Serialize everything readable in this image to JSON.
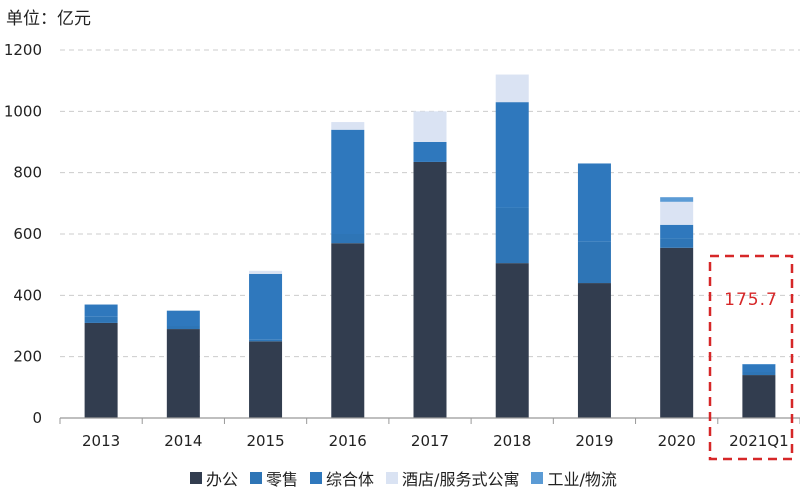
{
  "unit_label": "单位：亿元",
  "annotation": "175.7",
  "colors": {
    "office": "#323d4f",
    "retail": "#2e75b6",
    "complex": "#2f78bd",
    "hotel": "#dae3f3",
    "industrial": "#5b9bd5",
    "grid": "#cccccc",
    "axis": "#999999",
    "annotation": "#d62728"
  },
  "chart_data": {
    "type": "bar",
    "stacked": true,
    "categories": [
      "2013",
      "2014",
      "2015",
      "2016",
      "2017",
      "2018",
      "2019",
      "2020",
      "2021Q1"
    ],
    "series": [
      {
        "name": "办公",
        "color": "#323d4f",
        "values": [
          310,
          290,
          250,
          570,
          835,
          505,
          440,
          555,
          140
        ]
      },
      {
        "name": "零售",
        "color": "#2e75b6",
        "values": [
          20,
          10,
          5,
          30,
          0,
          180,
          135,
          30,
          10
        ]
      },
      {
        "name": "综合体",
        "color": "#2f78bd",
        "values": [
          40,
          50,
          215,
          340,
          65,
          345,
          255,
          45,
          25
        ]
      },
      {
        "name": "酒店/服务式公寓",
        "color": "#dae3f3",
        "values": [
          0,
          0,
          10,
          25,
          100,
          90,
          0,
          75,
          0
        ]
      },
      {
        "name": "工业/物流",
        "color": "#5b9bd5",
        "values": [
          0,
          0,
          0,
          0,
          0,
          0,
          0,
          15,
          0.7
        ]
      }
    ],
    "ylim": [
      0,
      1200
    ],
    "yticks": [
      0,
      200,
      400,
      600,
      800,
      1000,
      1200
    ],
    "grid": true,
    "legend": "bottom",
    "highlight_category": "2021Q1"
  }
}
